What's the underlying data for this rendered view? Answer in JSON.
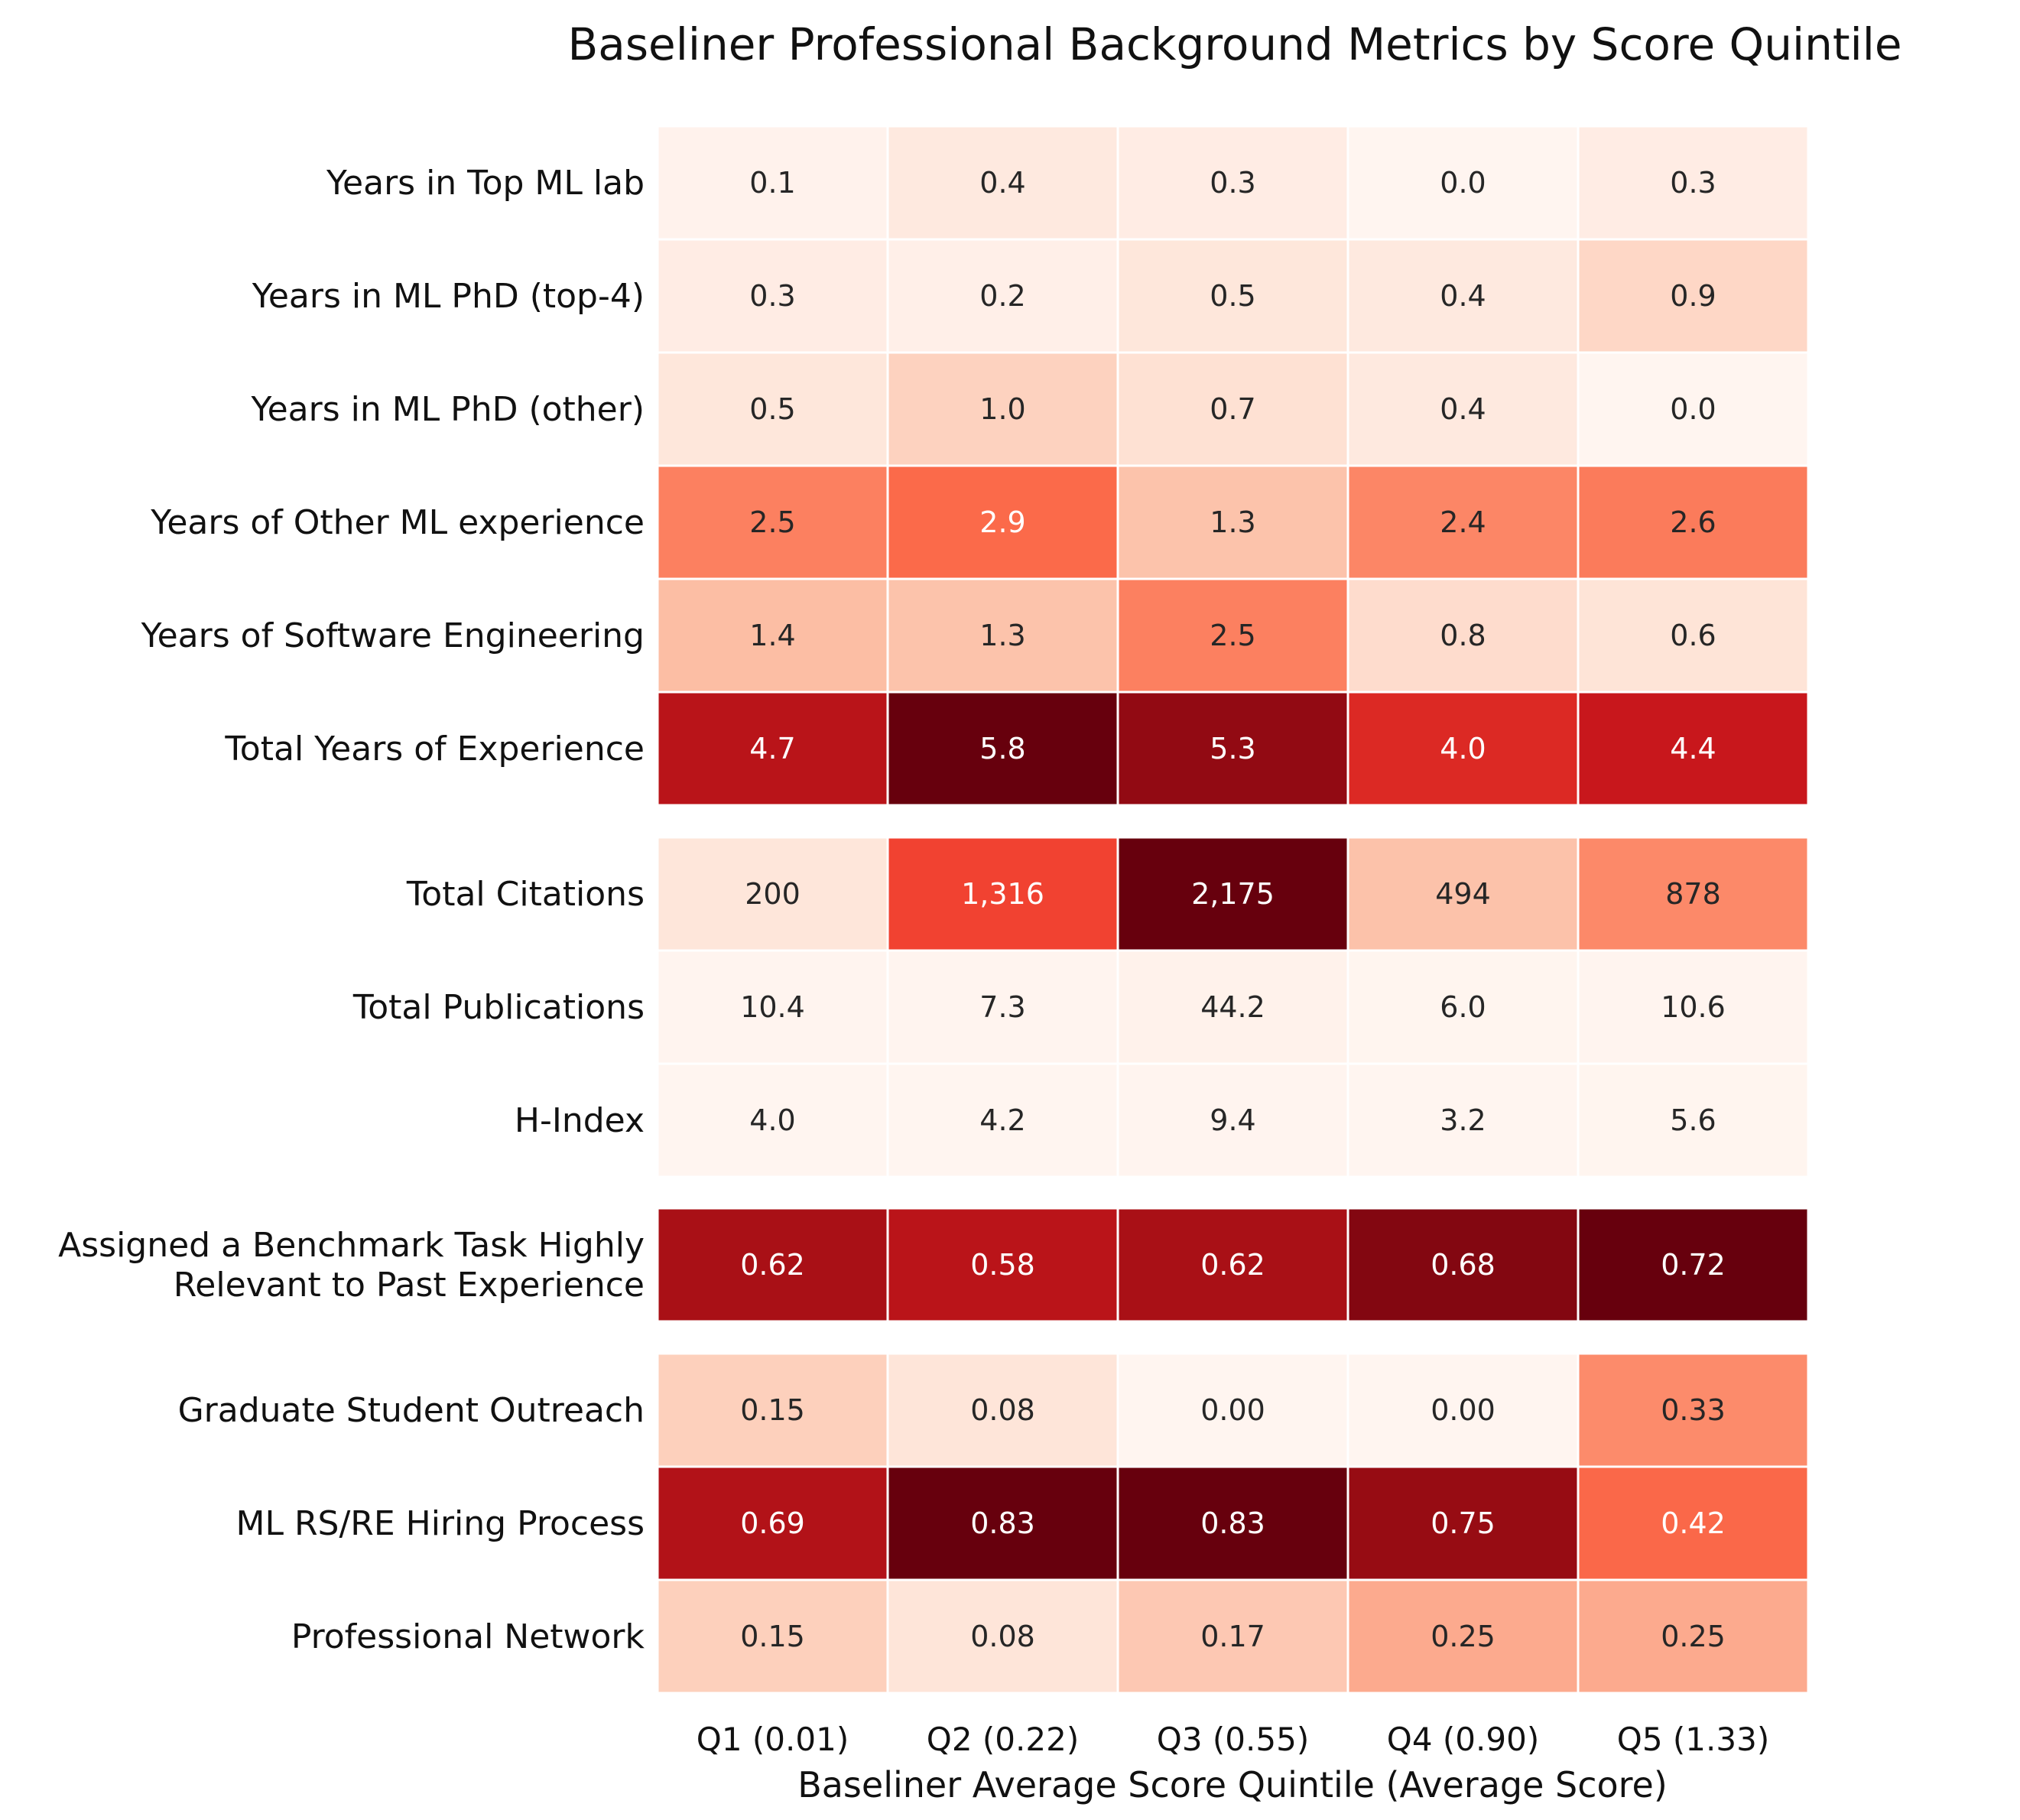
{
  "chart_data": {
    "type": "heatmap",
    "title": "Baseliner Professional Background Metrics by Score Quintile",
    "xlabel": "Baseliner Average Score Quintile (Average Score)",
    "ylabel": "",
    "columns": [
      "Q1 (0.01)",
      "Q2 (0.22)",
      "Q3 (0.55)",
      "Q4 (0.90)",
      "Q5 (1.33)"
    ],
    "colormap": "Reds",
    "groups": [
      {
        "rows": [
          {
            "label": "Years in Top ML lab",
            "values": [
              0.1,
              0.4,
              0.3,
              0.0,
              0.3
            ],
            "display": [
              "0.1",
              "0.4",
              "0.3",
              "0.0",
              "0.3"
            ]
          },
          {
            "label": "Years in ML PhD (top-4)",
            "values": [
              0.3,
              0.2,
              0.5,
              0.4,
              0.9
            ],
            "display": [
              "0.3",
              "0.2",
              "0.5",
              "0.4",
              "0.9"
            ]
          },
          {
            "label": "Years in ML PhD (other)",
            "values": [
              0.5,
              1.0,
              0.7,
              0.4,
              0.0
            ],
            "display": [
              "0.5",
              "1.0",
              "0.7",
              "0.4",
              "0.0"
            ]
          },
          {
            "label": "Years of Other ML experience",
            "values": [
              2.5,
              2.9,
              1.3,
              2.4,
              2.6
            ],
            "display": [
              "2.5",
              "2.9",
              "1.3",
              "2.4",
              "2.6"
            ]
          },
          {
            "label": "Years of Software Engineering",
            "values": [
              1.4,
              1.3,
              2.5,
              0.8,
              0.6
            ],
            "display": [
              "1.4",
              "1.3",
              "2.5",
              "0.8",
              "0.6"
            ]
          },
          {
            "label": "Total Years of Experience",
            "values": [
              4.7,
              5.8,
              5.3,
              4.0,
              4.4
            ],
            "display": [
              "4.7",
              "5.8",
              "5.3",
              "4.0",
              "4.4"
            ]
          }
        ]
      },
      {
        "rows": [
          {
            "label": "Total Citations",
            "values": [
              200,
              1316,
              2175,
              494,
              878
            ],
            "display": [
              "200",
              "1,316",
              "2,175",
              "494",
              "878"
            ]
          },
          {
            "label": "Total Publications",
            "values": [
              10.4,
              7.3,
              44.2,
              6.0,
              10.6
            ],
            "display": [
              "10.4",
              "7.3",
              "44.2",
              "6.0",
              "10.6"
            ]
          },
          {
            "label": "H-Index",
            "values": [
              4.0,
              4.2,
              9.4,
              3.2,
              5.6
            ],
            "display": [
              "4.0",
              "4.2",
              "9.4",
              "3.2",
              "5.6"
            ]
          }
        ]
      },
      {
        "rows": [
          {
            "label": "Assigned a Benchmark Task Highly Relevant to Past Experience",
            "label_lines": [
              "Assigned a Benchmark Task Highly",
              "Relevant to Past Experience"
            ],
            "values": [
              0.62,
              0.58,
              0.62,
              0.68,
              0.72
            ],
            "display": [
              "0.62",
              "0.58",
              "0.62",
              "0.68",
              "0.72"
            ]
          }
        ]
      },
      {
        "rows": [
          {
            "label": "Graduate Student Outreach",
            "values": [
              0.15,
              0.08,
              0.0,
              0.0,
              0.33
            ],
            "display": [
              "0.15",
              "0.08",
              "0.00",
              "0.00",
              "0.33"
            ]
          },
          {
            "label": "ML RS/RE Hiring Process",
            "values": [
              0.69,
              0.83,
              0.83,
              0.75,
              0.42
            ],
            "display": [
              "0.69",
              "0.83",
              "0.83",
              "0.75",
              "0.42"
            ]
          },
          {
            "label": "Professional Network",
            "values": [
              0.15,
              0.08,
              0.17,
              0.25,
              0.25
            ],
            "display": [
              "0.15",
              "0.08",
              "0.17",
              "0.25",
              "0.25"
            ]
          }
        ]
      }
    ]
  }
}
